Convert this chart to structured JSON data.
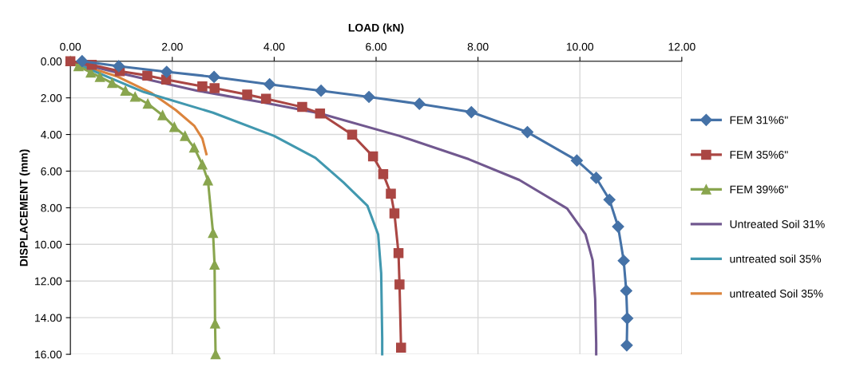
{
  "chart_data": {
    "type": "line",
    "xlabel": "LOAD (kN)",
    "ylabel": "DISPLACEMENT (mm)",
    "xlim": [
      0,
      12
    ],
    "ylim": [
      16,
      0
    ],
    "xticks": [
      {
        "value": 0,
        "label": "0.00"
      },
      {
        "value": 2,
        "label": "2.00"
      },
      {
        "value": 4,
        "label": "4.00"
      },
      {
        "value": 6,
        "label": "6.00"
      },
      {
        "value": 8,
        "label": "8.00"
      },
      {
        "value": 10,
        "label": "10.00"
      },
      {
        "value": 12,
        "label": "12.00"
      }
    ],
    "yticks": [
      {
        "value": 0,
        "label": "0.00"
      },
      {
        "value": 2,
        "label": "2.00"
      },
      {
        "value": 4,
        "label": "4.00"
      },
      {
        "value": 6,
        "label": "6.00"
      },
      {
        "value": 8,
        "label": "8.00"
      },
      {
        "value": 10,
        "label": "10.00"
      },
      {
        "value": 12,
        "label": "12.00"
      },
      {
        "value": 14,
        "label": "14.00"
      },
      {
        "value": 16,
        "label": "16.00"
      }
    ],
    "grid": true,
    "legend": "right",
    "line_style": "solid",
    "series": [
      {
        "name": "FEM 31%6\"",
        "color": "#4572a7",
        "marker": "diamond",
        "x": [
          0.23,
          0.95,
          1.89,
          2.82,
          3.91,
          4.92,
          5.86,
          6.85,
          7.87,
          8.97,
          9.94,
          10.32,
          10.58,
          10.75,
          10.86,
          10.91,
          10.93,
          10.92
        ],
        "values": [
          0.0,
          0.27,
          0.58,
          0.86,
          1.26,
          1.61,
          1.95,
          2.33,
          2.78,
          3.87,
          5.42,
          6.37,
          7.56,
          9.03,
          10.89,
          12.53,
          14.04,
          15.51
        ]
      },
      {
        "name": "FEM 35%6\"",
        "color": "#aa4643",
        "marker": "square",
        "x": [
          0,
          0.42,
          0.97,
          1.51,
          1.88,
          2.59,
          2.83,
          3.47,
          3.84,
          4.55,
          4.9,
          5.53,
          5.94,
          6.14,
          6.29,
          6.36,
          6.44,
          6.46,
          6.49
        ],
        "values": [
          0,
          0.2,
          0.55,
          0.78,
          1.0,
          1.37,
          1.47,
          1.82,
          2.05,
          2.5,
          2.85,
          4.01,
          5.2,
          6.16,
          7.23,
          8.31,
          10.48,
          12.19,
          15.64
        ]
      },
      {
        "name": "FEM 39%6\"",
        "color": "#89a54e",
        "marker": "triangle",
        "x": [
          0,
          0.16,
          0.4,
          0.58,
          0.82,
          1.08,
          1.27,
          1.52,
          1.81,
          2.04,
          2.25,
          2.43,
          2.59,
          2.7,
          2.8,
          2.83,
          2.84,
          2.85
        ],
        "values": [
          0,
          0.27,
          0.62,
          0.86,
          1.19,
          1.61,
          1.94,
          2.32,
          2.95,
          3.59,
          4.08,
          4.72,
          5.64,
          6.51,
          9.38,
          11.11,
          14.32,
          16
        ]
      },
      {
        "name": "Untreated Soil 31%",
        "color": "#71588f",
        "marker": "none",
        "x": [
          0,
          0.92,
          2.49,
          3.79,
          4.89,
          6.46,
          7.82,
          8.81,
          9.75,
          10.11,
          10.25,
          10.3,
          10.32,
          10.32
        ],
        "values": [
          0,
          0.62,
          1.61,
          2.25,
          2.84,
          4.08,
          5.35,
          6.48,
          8.04,
          9.45,
          10.86,
          12.98,
          15.4,
          16
        ]
      },
      {
        "name": "untreated soil 35%",
        "color": "#4198af",
        "marker": "none",
        "x": [
          0,
          1.44,
          2.8,
          4.0,
          4.81,
          5.36,
          5.83,
          6.04,
          6.1,
          6.12,
          6.12
        ],
        "values": [
          0,
          1.68,
          2.81,
          4.08,
          5.28,
          6.62,
          7.89,
          9.45,
          11.57,
          15.1,
          16
        ]
      },
      {
        "name": "untreated Soil 35%",
        "color": "#db843d",
        "marker": "none",
        "x": [
          0,
          0.19,
          0.92,
          1.6,
          2.07,
          2.43,
          2.59,
          2.67
        ],
        "values": [
          0,
          0.2,
          0.83,
          1.75,
          2.67,
          3.52,
          4.22,
          5.07
        ]
      }
    ]
  }
}
